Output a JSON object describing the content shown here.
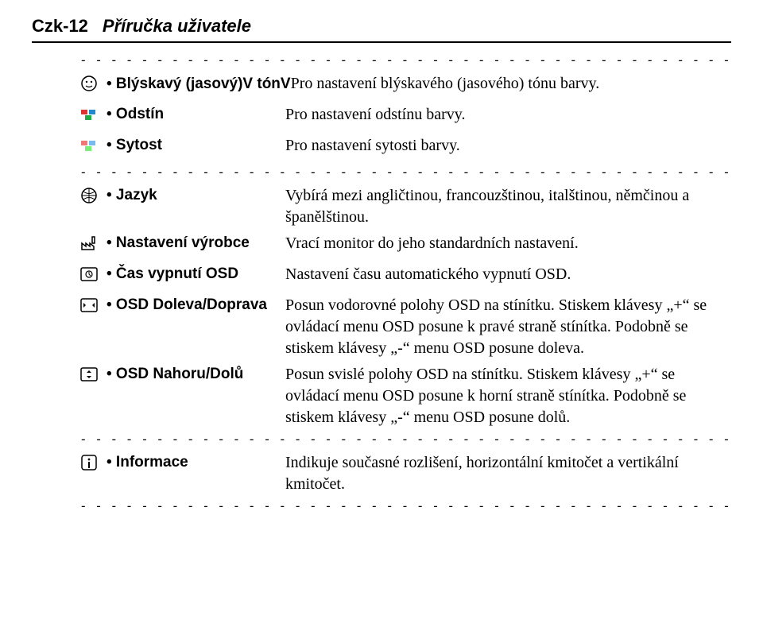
{
  "header": {
    "code": "Czk-12",
    "title": "Příručka uživatele"
  },
  "dashline": "- - - - - - - - - - - - - - - - - - - - - - - - - - - - - - - - - - - - - - - - - - - - - - - - - - - - - - - - -",
  "group1": [
    {
      "icon": "face",
      "label": "• Blýskavý (jasový)V tónV",
      "label_inline": true,
      "desc": "Pro nastavení blýskavého (jasového) tónu barvy."
    },
    {
      "icon": "palette1",
      "label": "• Odstín",
      "desc": "Pro nastavení odstínu barvy."
    },
    {
      "icon": "palette2",
      "label": "• Sytost",
      "desc": "Pro nastavení sytosti barvy."
    }
  ],
  "group2": [
    {
      "icon": "globe",
      "label": "• Jazyk",
      "desc": "Vybírá mezi angličtinou, francouzštinou, italštinou, němčinou a španělštinou."
    },
    {
      "icon": "factory",
      "label": "• Nastavení výrobce",
      "desc": "Vrací monitor do jeho standardních nastavení."
    },
    {
      "icon": "osd-timer",
      "label": "• Čas vypnutí OSD",
      "desc": "Nastavení času automatického vypnutí OSD."
    },
    {
      "icon": "osd-lr",
      "label": "• OSD Doleva/Doprava",
      "desc": "Posun vodorovné polohy OSD na stínítku. Stiskem klávesy „+“ se ovládací menu OSD posune k pravé straně stínítka. Podobně se stiskem klávesy „-“ menu OSD posune doleva."
    },
    {
      "icon": "osd-ud",
      "label": "• OSD Nahoru/Dolů",
      "desc": "Posun svislé polohy OSD na stínítku. Stiskem klávesy „+“ se ovládací menu OSD posune k horní straně stínítka. Podobně se stiskem klávesy „-“ menu OSD posune dolů."
    }
  ],
  "group3": [
    {
      "icon": "info",
      "label": "• Informace",
      "desc": "Indikuje současné rozlišení, horizontální kmitočet a vertikální kmitočet."
    }
  ]
}
